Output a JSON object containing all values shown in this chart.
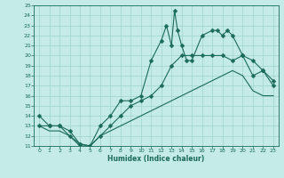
{
  "xlabel": "Humidex (Indice chaleur)",
  "xlim": [
    -0.5,
    23.5
  ],
  "ylim": [
    11,
    25
  ],
  "yticks": [
    11,
    12,
    13,
    14,
    15,
    16,
    17,
    18,
    19,
    20,
    21,
    22,
    23,
    24,
    25
  ],
  "xticks": [
    0,
    1,
    2,
    3,
    4,
    5,
    6,
    7,
    8,
    9,
    10,
    11,
    12,
    13,
    14,
    15,
    16,
    17,
    18,
    19,
    20,
    21,
    22,
    23
  ],
  "bg_color": "#c5ebe6",
  "grid_color": "#9ed4ce",
  "line_color": "#1a6b5a",
  "line1_x": [
    0,
    1,
    2,
    3,
    4,
    5,
    6,
    7,
    8,
    9,
    10,
    11,
    12,
    12.5,
    13,
    13.3,
    13.6,
    14,
    14.5,
    15,
    16,
    17,
    17.5,
    18,
    18.5,
    19,
    20,
    21,
    22,
    23
  ],
  "line1_y": [
    14,
    13,
    13,
    12,
    11.2,
    11,
    13,
    14,
    15.5,
    15.5,
    16,
    19.5,
    21.5,
    23,
    21,
    24.5,
    22.5,
    21,
    19.5,
    19.5,
    22,
    22.5,
    22.5,
    22,
    22.5,
    22,
    20,
    19.5,
    18.5,
    17.5
  ],
  "line2_x": [
    0,
    1,
    2,
    3,
    4,
    5,
    6,
    7,
    8,
    9,
    10,
    11,
    12,
    13,
    14,
    15,
    16,
    17,
    18,
    19,
    20,
    21,
    22,
    23
  ],
  "line2_y": [
    13,
    13,
    13,
    12.5,
    11.2,
    11,
    12,
    13,
    14,
    15,
    15.5,
    16,
    17,
    19,
    20,
    20,
    20,
    20,
    20,
    19.5,
    20,
    18,
    18.5,
    17
  ],
  "line3_x": [
    0,
    1,
    2,
    3,
    4,
    5,
    6,
    7,
    8,
    9,
    10,
    11,
    12,
    13,
    14,
    15,
    16,
    17,
    18,
    19,
    20,
    21,
    22,
    23
  ],
  "line3_y": [
    13,
    12.5,
    12.5,
    12,
    11,
    11,
    12,
    12.5,
    13,
    13.5,
    14,
    14.5,
    15,
    15.5,
    16,
    16.5,
    17,
    17.5,
    18,
    18.5,
    18,
    16.5,
    16,
    16
  ],
  "marker_size": 2.5,
  "linewidth": 0.8
}
